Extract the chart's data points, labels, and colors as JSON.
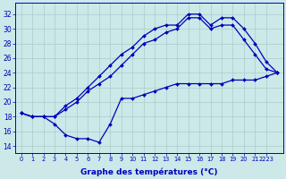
{
  "bg_color": "#cce8e8",
  "grid_color": "#aacccc",
  "line_color": "#0000bb",
  "xlabel": "Graphe des températures (°C)",
  "xlim": [
    -0.5,
    23.5
  ],
  "ylim": [
    13.0,
    33.5
  ],
  "yticks": [
    14,
    16,
    18,
    20,
    22,
    24,
    26,
    28,
    30,
    32
  ],
  "ytick_labels": [
    "14",
    "16",
    "18",
    "20",
    "22",
    "24",
    "26",
    "28",
    "30",
    "32"
  ],
  "xtick_labels": [
    "0",
    "1",
    "2",
    "3",
    "4",
    "5",
    "6",
    "7",
    "8",
    "9",
    "10",
    "11",
    "12",
    "13",
    "14",
    "15",
    "16",
    "17",
    "18",
    "19",
    "20",
    "21",
    "2223"
  ],
  "line_dip_x": [
    0,
    1,
    2,
    3,
    4,
    5,
    6,
    7,
    8,
    9,
    10,
    11,
    12,
    13,
    14,
    15,
    16,
    17,
    18,
    19,
    20,
    21,
    22,
    23
  ],
  "line_dip_y": [
    18.5,
    18.0,
    18.0,
    17.0,
    15.5,
    15.0,
    15.0,
    14.5,
    17.0,
    20.5,
    20.5,
    21.0,
    21.5,
    22.0,
    22.5,
    22.5,
    22.5,
    22.5,
    22.5,
    23.0,
    23.0,
    23.0,
    23.5,
    24.0
  ],
  "line_upper_x": [
    0,
    1,
    2,
    3,
    4,
    5,
    6,
    7,
    8,
    9,
    10,
    11,
    12,
    13,
    14,
    15,
    16,
    17,
    18,
    19,
    20,
    21,
    22,
    23
  ],
  "line_upper_y": [
    18.5,
    18.0,
    18.0,
    18.0,
    19.5,
    20.5,
    22.0,
    23.5,
    25.0,
    26.5,
    27.5,
    29.0,
    30.0,
    30.5,
    30.5,
    32.0,
    32.0,
    30.5,
    31.5,
    31.5,
    30.0,
    28.0,
    25.5,
    24.0
  ],
  "line_lower_x": [
    0,
    1,
    2,
    3,
    4,
    5,
    6,
    7,
    8,
    9,
    10,
    11,
    12,
    13,
    14,
    15,
    16,
    17,
    18,
    19,
    20,
    21,
    22,
    23
  ],
  "line_lower_y": [
    18.5,
    18.0,
    18.0,
    18.0,
    19.0,
    20.0,
    21.5,
    22.5,
    23.5,
    25.0,
    26.5,
    28.0,
    28.5,
    29.5,
    30.0,
    31.5,
    31.5,
    30.0,
    30.5,
    30.5,
    28.5,
    26.5,
    24.5,
    24.0
  ]
}
